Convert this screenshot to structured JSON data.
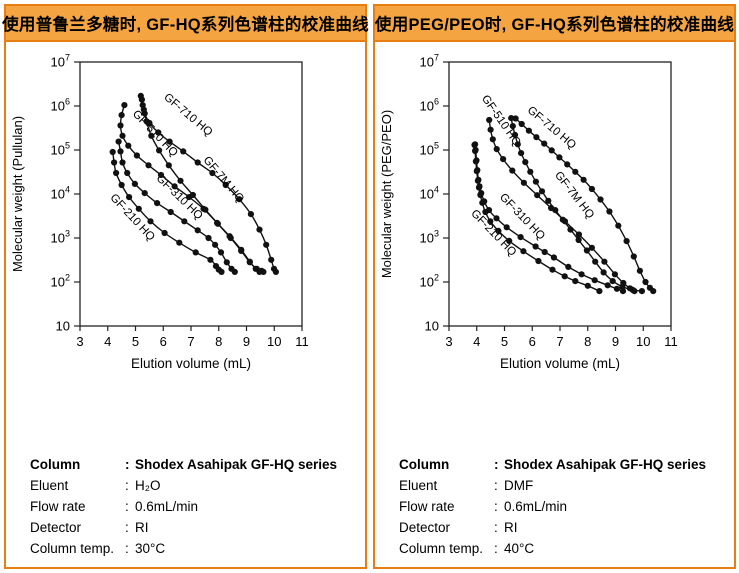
{
  "theme": {
    "panel_border": "#e87d12",
    "header_bg": "#f4a542",
    "header_text_color": "#000000",
    "curve_color": "#111111",
    "axis_color": "#222222"
  },
  "panels": [
    {
      "header": "使用普鲁兰多糖时, GF-HQ系列色谱柱的校准曲线",
      "conditions": {
        "rows": [
          {
            "label": "Column",
            "sep": ":",
            "value": "Shodex Asahipak GF-HQ series",
            "bold": true
          },
          {
            "label": "Eluent",
            "sep": ":",
            "value": "H₂O",
            "bold": false
          },
          {
            "label": "Flow rate",
            "sep": ":",
            "value": "0.6mL/min",
            "bold": false
          },
          {
            "label": "Detector",
            "sep": ":",
            "value": "RI",
            "bold": false
          },
          {
            "label": "Column temp.",
            "sep": ":",
            "value": "30°C",
            "bold": false
          }
        ]
      }
    },
    {
      "header": "使用PEG/PEO时, GF-HQ系列色谱柱的校准曲线",
      "conditions": {
        "rows": [
          {
            "label": "Column",
            "sep": ":",
            "value": "Shodex Asahipak GF-HQ series",
            "bold": true
          },
          {
            "label": "Eluent",
            "sep": ":",
            "value": "DMF",
            "bold": false
          },
          {
            "label": "Flow rate",
            "sep": ":",
            "value": "0.6mL/min",
            "bold": false
          },
          {
            "label": "Detector",
            "sep": ":",
            "value": "RI",
            "bold": false
          },
          {
            "label": "Column temp.",
            "sep": ":",
            "value": "40°C",
            "bold": false
          }
        ]
      }
    }
  ],
  "chart_data": [
    {
      "type": "line",
      "title": "",
      "xlabel": "Elution volume (mL)",
      "ylabel": "Molecular weight (Pullulan)",
      "xlim": [
        3,
        11
      ],
      "x_ticks": [
        3,
        4,
        5,
        6,
        7,
        8,
        9,
        10,
        11
      ],
      "y_log_exponent_range": [
        1,
        7
      ],
      "y_tick_exponents": [
        1,
        2,
        3,
        4,
        5,
        6,
        7
      ],
      "grid": false,
      "markers": true,
      "legend": "inline-rotated-labels",
      "series": [
        {
          "name": "GF-210 HQ",
          "label_v": 4.8,
          "label_m": 2600,
          "label_angle": 47,
          "points": [
            [
              4.18,
              90000
            ],
            [
              4.23,
              52000
            ],
            [
              4.3,
              30000
            ],
            [
              4.5,
              16000
            ],
            [
              4.77,
              8500
            ],
            [
              5.12,
              4600
            ],
            [
              5.54,
              2400
            ],
            [
              6.05,
              1300
            ],
            [
              6.58,
              780
            ],
            [
              7.17,
              470
            ],
            [
              7.7,
              320
            ],
            [
              7.9,
              230
            ],
            [
              8.0,
              190
            ],
            [
              8.1,
              170
            ]
          ]
        },
        {
          "name": "GF-310 HQ",
          "label_v": 6.5,
          "label_m": 7500,
          "label_angle": 44,
          "points": [
            [
              4.39,
              155000
            ],
            [
              4.46,
              93000
            ],
            [
              4.53,
              52000
            ],
            [
              4.7,
              30000
            ],
            [
              4.98,
              17000
            ],
            [
              5.33,
              10500
            ],
            [
              5.78,
              6200
            ],
            [
              6.27,
              3900
            ],
            [
              6.76,
              2400
            ],
            [
              7.24,
              1500
            ],
            [
              7.63,
              1000
            ],
            [
              7.87,
              700
            ],
            [
              8.08,
              470
            ],
            [
              8.29,
              280
            ],
            [
              8.46,
              200
            ],
            [
              8.58,
              170
            ]
          ]
        },
        {
          "name": "GF-510 HQ",
          "label_v": 5.62,
          "label_m": 210000,
          "label_angle": 46,
          "points": [
            [
              4.6,
              1050000
            ],
            [
              4.5,
              620000
            ],
            [
              4.46,
              360000
            ],
            [
              4.53,
              210000
            ],
            [
              4.74,
              125000
            ],
            [
              5.05,
              75000
            ],
            [
              5.47,
              45000
            ],
            [
              5.92,
              27000
            ],
            [
              6.41,
              15000
            ],
            [
              6.93,
              8500
            ],
            [
              7.45,
              4600
            ],
            [
              7.94,
              2200
            ],
            [
              8.39,
              1100
            ],
            [
              8.81,
              540
            ],
            [
              9.12,
              290
            ],
            [
              9.33,
              200
            ],
            [
              9.47,
              170
            ]
          ]
        },
        {
          "name": "GF-710 HQ",
          "label_v": 6.82,
          "label_m": 550000,
          "label_angle": 40,
          "points": [
            [
              5.19,
              1700000
            ],
            [
              5.26,
              1050000
            ],
            [
              5.33,
              680000
            ],
            [
              5.5,
              410000
            ],
            [
              5.82,
              250000
            ],
            [
              6.23,
              155000
            ],
            [
              6.72,
              93000
            ],
            [
              7.24,
              52000
            ],
            [
              7.77,
              30000
            ],
            [
              8.25,
              16000
            ],
            [
              8.74,
              7600
            ],
            [
              9.16,
              3500
            ],
            [
              9.47,
              1550
            ],
            [
              9.71,
              700
            ],
            [
              9.89,
              320
            ],
            [
              9.99,
              200
            ],
            [
              10.06,
              170
            ]
          ]
        },
        {
          "name": "GF-7M HQ",
          "label_v": 8.08,
          "label_m": 19000,
          "label_angle": 50,
          "points": [
            [
              5.23,
              1400000
            ],
            [
              5.3,
              830000
            ],
            [
              5.4,
              450000
            ],
            [
              5.57,
              210000
            ],
            [
              5.85,
              98000
            ],
            [
              6.2,
              45000
            ],
            [
              6.62,
              20000
            ],
            [
              7.07,
              9500
            ],
            [
              7.52,
              4400
            ],
            [
              7.97,
              2100
            ],
            [
              8.43,
              1000
            ],
            [
              8.81,
              510
            ],
            [
              9.12,
              280
            ],
            [
              9.37,
              200
            ],
            [
              9.54,
              180
            ],
            [
              9.61,
              170
            ]
          ]
        }
      ]
    },
    {
      "type": "line",
      "title": "",
      "xlabel": "Elution volume (mL)",
      "ylabel": "Molecular weight (PEG/PEO)",
      "xlim": [
        3,
        11
      ],
      "x_ticks": [
        3,
        4,
        5,
        6,
        7,
        8,
        9,
        10,
        11
      ],
      "y_log_exponent_range": [
        1,
        7
      ],
      "y_tick_exponents": [
        1,
        2,
        3,
        4,
        5,
        6,
        7
      ],
      "grid": false,
      "markers": true,
      "legend": "inline-rotated-labels",
      "series": [
        {
          "name": "GF-210 HQ",
          "label_v": 4.52,
          "label_m": 1150,
          "label_angle": 46,
          "points": [
            [
              3.92,
              130000
            ],
            [
              3.94,
              95000
            ],
            [
              3.97,
              55000
            ],
            [
              4.0,
              33000
            ],
            [
              4.04,
              20000
            ],
            [
              4.08,
              14000
            ],
            [
              4.13,
              9500
            ],
            [
              4.2,
              6300
            ],
            [
              4.31,
              3900
            ],
            [
              4.49,
              2400
            ],
            [
              4.78,
              1450
            ],
            [
              5.17,
              860
            ],
            [
              5.68,
              500
            ],
            [
              6.22,
              300
            ],
            [
              6.73,
              190
            ],
            [
              7.17,
              135
            ],
            [
              7.55,
              105
            ],
            [
              8.0,
              82
            ],
            [
              8.42,
              62
            ]
          ]
        },
        {
          "name": "GF-310 HQ",
          "label_v": 5.55,
          "label_m": 2700,
          "label_angle": 46,
          "points": [
            [
              3.94,
              135000
            ],
            [
              3.96,
              100000
            ],
            [
              3.99,
              58000
            ],
            [
              4.02,
              35000
            ],
            [
              4.06,
              21000
            ],
            [
              4.1,
              15000
            ],
            [
              4.16,
              10500
            ],
            [
              4.27,
              6800
            ],
            [
              4.44,
              4300
            ],
            [
              4.71,
              2800
            ],
            [
              5.08,
              1750
            ],
            [
              5.58,
              1050
            ],
            [
              6.12,
              640
            ],
            [
              6.45,
              480
            ],
            [
              6.78,
              360
            ],
            [
              7.3,
              220
            ],
            [
              7.78,
              150
            ],
            [
              8.25,
              110
            ],
            [
              8.72,
              84
            ],
            [
              9.05,
              70
            ],
            [
              9.27,
              62
            ]
          ]
        },
        {
          "name": "GF-510 HQ",
          "label_v": 4.78,
          "label_m": 420000,
          "label_angle": 55,
          "points": [
            [
              4.45,
              480000
            ],
            [
              4.5,
              290000
            ],
            [
              4.58,
              175000
            ],
            [
              4.72,
              105000
            ],
            [
              4.95,
              62000
            ],
            [
              5.28,
              34000
            ],
            [
              5.7,
              18000
            ],
            [
              6.18,
              9400
            ],
            [
              6.68,
              4800
            ],
            [
              7.18,
              2400
            ],
            [
              7.68,
              1200
            ],
            [
              8.15,
              600
            ],
            [
              8.6,
              290
            ],
            [
              8.98,
              150
            ],
            [
              9.28,
              95
            ],
            [
              9.52,
              72
            ],
            [
              9.68,
              62
            ]
          ]
        },
        {
          "name": "GF-710 HQ",
          "label_v": 6.62,
          "label_m": 280000,
          "label_angle": 40,
          "points": [
            [
              5.4,
              520000
            ],
            [
              5.62,
              390000
            ],
            [
              5.88,
              275000
            ],
            [
              6.15,
              195000
            ],
            [
              6.43,
              140000
            ],
            [
              6.7,
              98000
            ],
            [
              6.98,
              68000
            ],
            [
              7.26,
              47000
            ],
            [
              7.55,
              32000
            ],
            [
              7.85,
              21000
            ],
            [
              8.15,
              13000
            ],
            [
              8.46,
              7500
            ],
            [
              8.78,
              4000
            ],
            [
              9.1,
              1900
            ],
            [
              9.4,
              850
            ],
            [
              9.66,
              380
            ],
            [
              9.88,
              180
            ],
            [
              10.08,
              100
            ],
            [
              10.24,
              74
            ],
            [
              10.36,
              62
            ]
          ]
        },
        {
          "name": "GF-7M HQ",
          "label_v": 7.42,
          "label_m": 8500,
          "label_angle": 52,
          "points": [
            [
              5.24,
              530000
            ],
            [
              5.3,
              350000
            ],
            [
              5.38,
              220000
            ],
            [
              5.48,
              135000
            ],
            [
              5.6,
              85000
            ],
            [
              5.75,
              53000
            ],
            [
              5.93,
              32000
            ],
            [
              6.13,
              19000
            ],
            [
              6.35,
              11500
            ],
            [
              6.58,
              7000
            ],
            [
              6.83,
              4300
            ],
            [
              7.1,
              2600
            ],
            [
              7.38,
              1550
            ],
            [
              7.67,
              900
            ],
            [
              7.97,
              520
            ],
            [
              8.27,
              290
            ],
            [
              8.57,
              165
            ],
            [
              8.9,
              105
            ],
            [
              9.25,
              78
            ],
            [
              9.62,
              66
            ],
            [
              9.95,
              62
            ]
          ]
        }
      ]
    }
  ]
}
